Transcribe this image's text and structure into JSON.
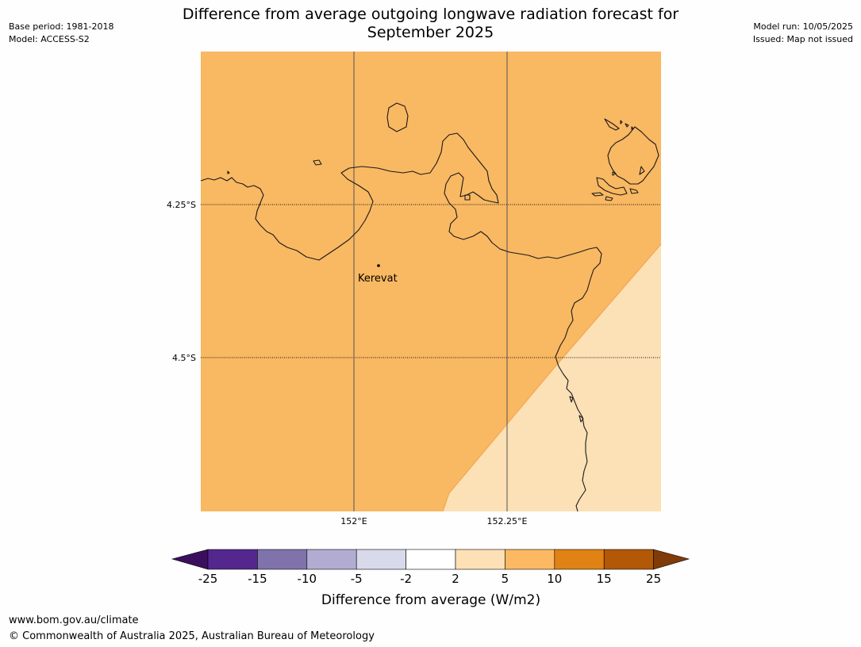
{
  "header": {
    "title_line1": "Difference from average outgoing longwave radiation forecast for",
    "title_line2": "September 2025",
    "base_period": "Base period: 1981-2018",
    "model": "Model: ACCESS-S2",
    "model_run": "Model run: 10/05/2025",
    "issued": "Issued: Map not issued"
  },
  "map": {
    "lat_labels": [
      "4.25°S",
      "4.5°S"
    ],
    "lon_labels": [
      "152°E",
      "152.25°E"
    ],
    "place_label": "Kerevat",
    "colors": {
      "fill_5_10": "#f9b862",
      "fill_2_5": "#fce0b6",
      "coastline": "#1a1a1a"
    }
  },
  "legend": {
    "ticks": [
      "-25",
      "-15",
      "-10",
      "-5",
      "-2",
      "2",
      "5",
      "10",
      "15",
      "25"
    ],
    "colors": [
      "#3b0f5e",
      "#54278f",
      "#8073ac",
      "#b2abd2",
      "#d8daeb",
      "#ffffff",
      "#fee0b6",
      "#fdb863",
      "#e08214",
      "#b35806",
      "#7f3b08"
    ],
    "label": "Difference from average (W/m2)"
  },
  "footer": {
    "url": "www.bom.gov.au/climate",
    "copyright": "© Commonwealth of Australia 2025, Australian Bureau of Meteorology"
  }
}
